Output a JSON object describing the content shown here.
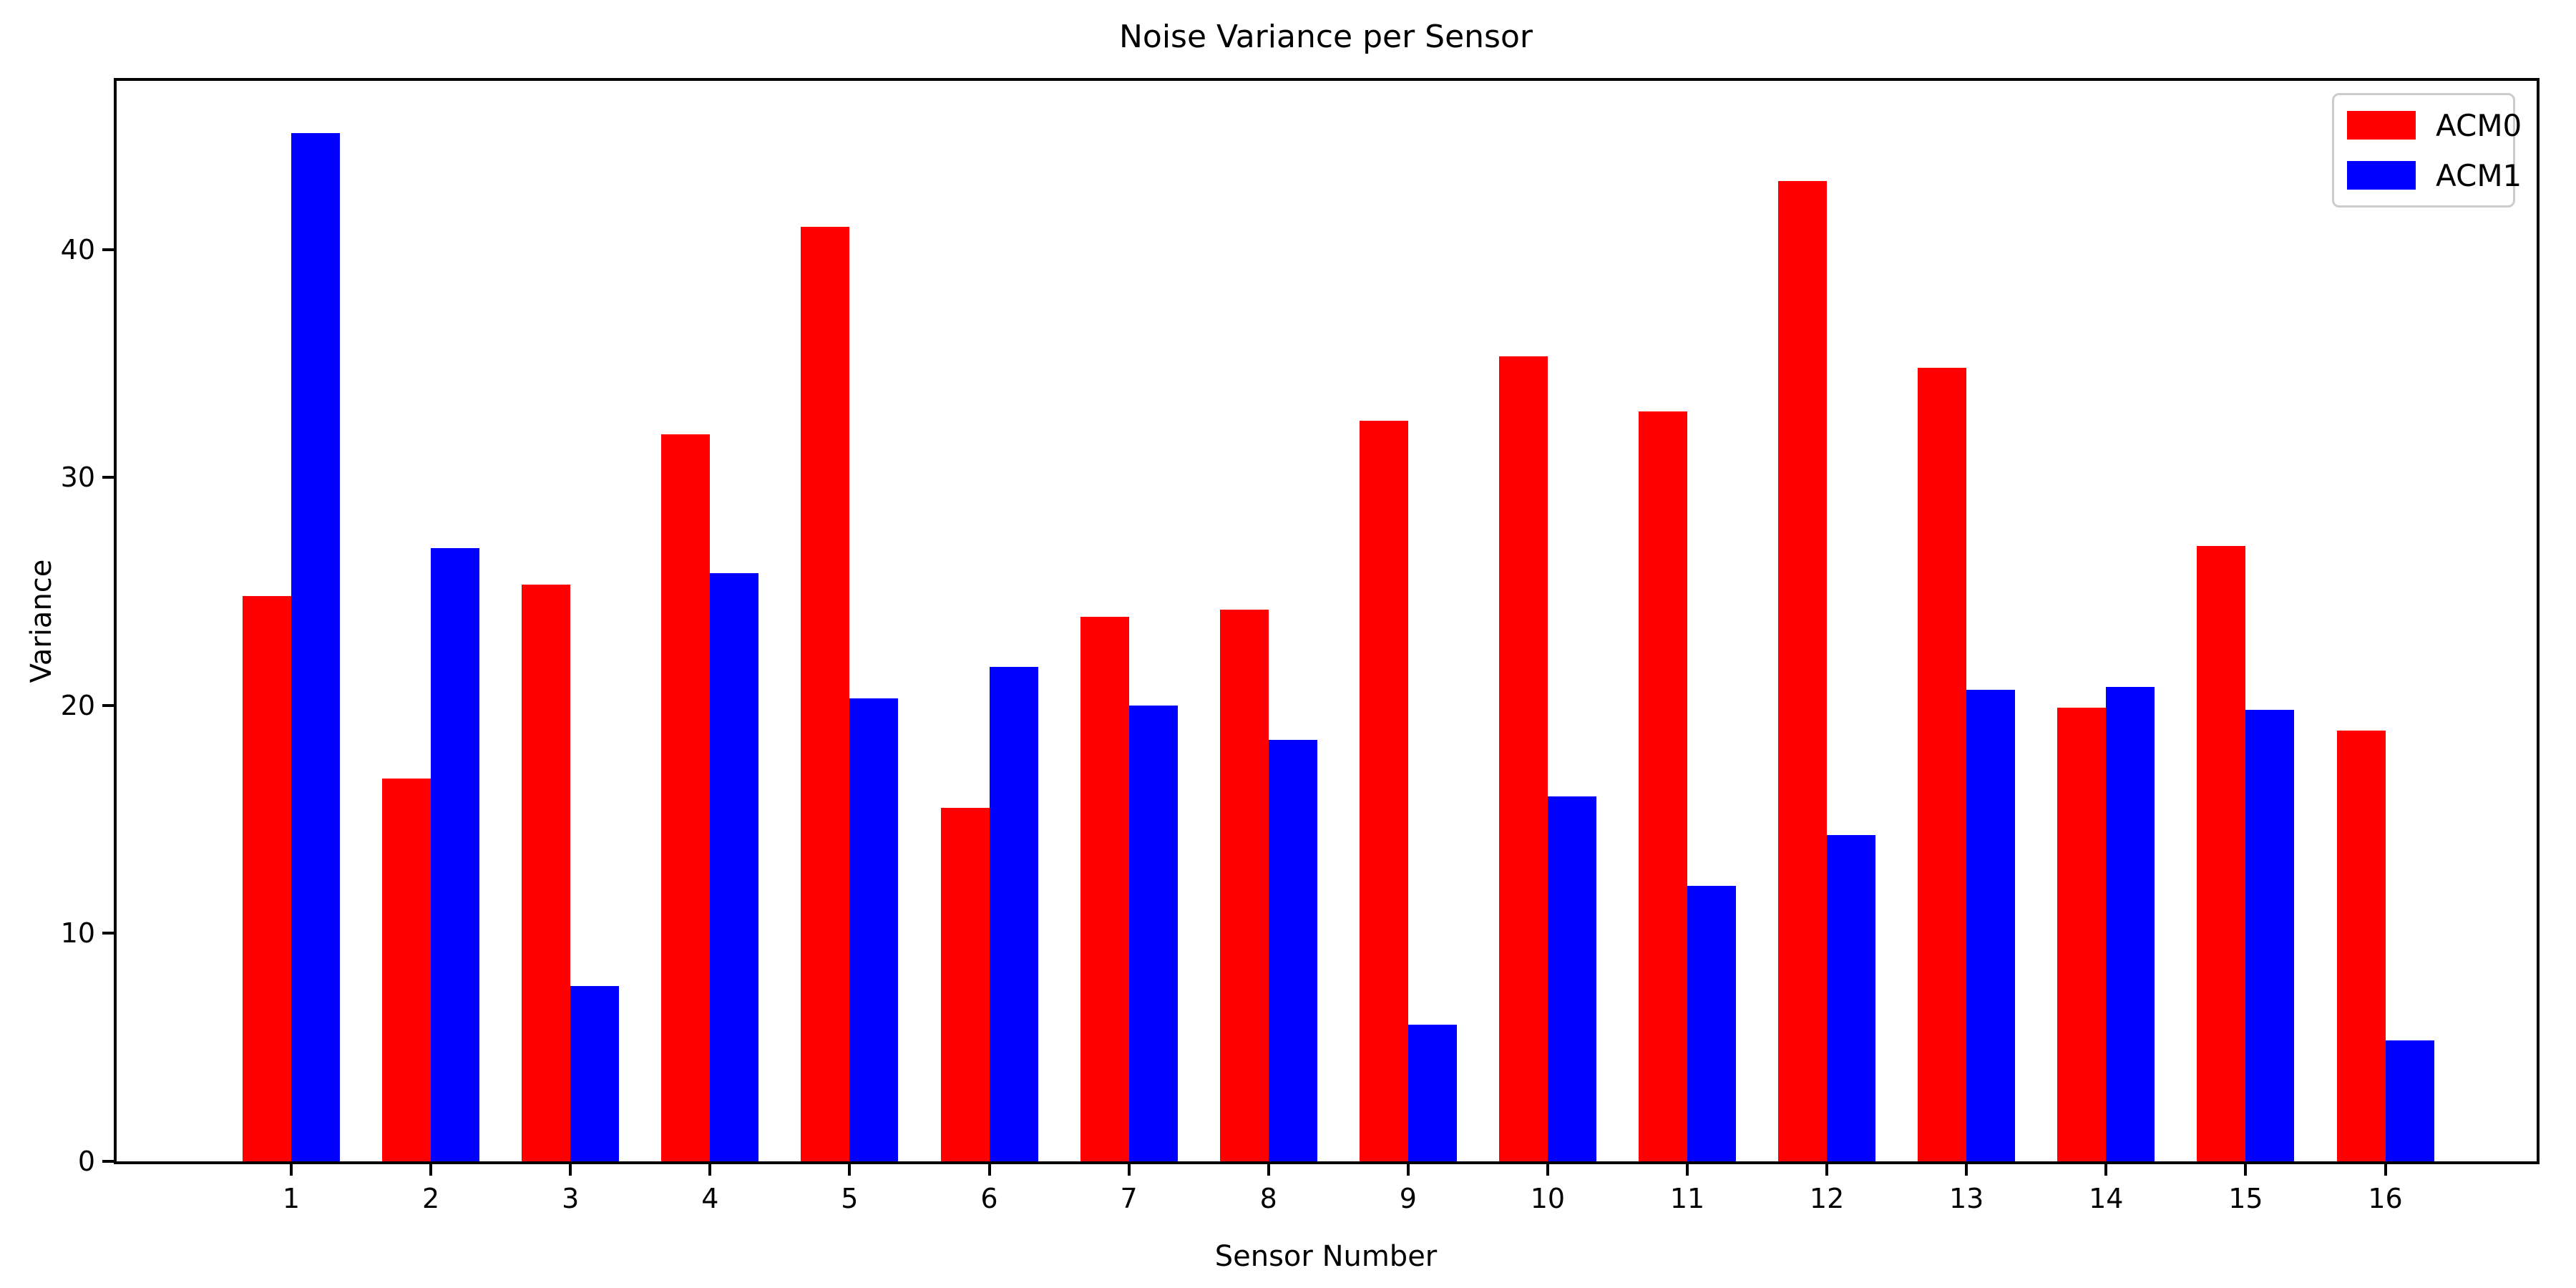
{
  "chart_data": {
    "type": "bar",
    "title": "Noise Variance per Sensor",
    "xlabel": "Sensor Number",
    "ylabel": "Variance",
    "categories": [
      "1",
      "2",
      "3",
      "4",
      "5",
      "6",
      "7",
      "8",
      "9",
      "10",
      "11",
      "12",
      "13",
      "14",
      "15",
      "16"
    ],
    "series": [
      {
        "name": "ACM0",
        "color": "#ff0000",
        "values": [
          24.8,
          16.8,
          25.3,
          31.9,
          41.0,
          15.5,
          23.9,
          24.2,
          32.5,
          35.3,
          32.9,
          43.0,
          34.8,
          19.9,
          27.0,
          18.9
        ]
      },
      {
        "name": "ACM1",
        "color": "#0000ff",
        "values": [
          45.1,
          26.9,
          7.7,
          25.8,
          20.3,
          21.7,
          20.0,
          18.5,
          6.0,
          16.0,
          12.1,
          14.3,
          20.7,
          20.8,
          19.8,
          5.3
        ]
      }
    ],
    "yticks": [
      0,
      10,
      20,
      30,
      40
    ],
    "ylim": [
      0,
      47.4
    ],
    "bar_width": 0.35,
    "grid": false,
    "legend_position": "upper right",
    "text_color": "#000000",
    "axis_color": "#000000",
    "background_color": "#ffffff"
  }
}
